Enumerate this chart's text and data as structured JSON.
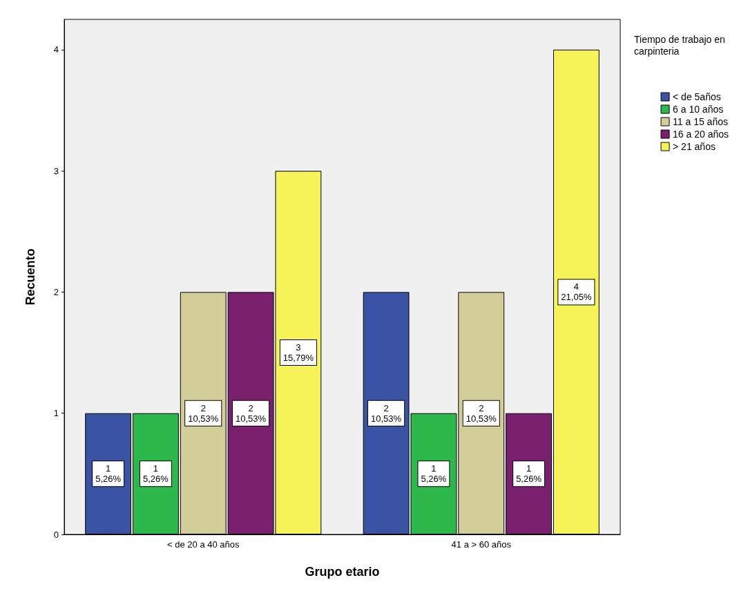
{
  "chart_data": {
    "type": "bar",
    "xlabel": "Grupo etario",
    "ylabel": "Recuento",
    "legend_title": "Tiempo de trabajo en carpinteria",
    "categories": [
      "< de 20 a 40 años",
      "41 a > 60 años"
    ],
    "series": [
      {
        "name": "< de 5años",
        "color": "#3a53a4",
        "values": [
          1,
          2
        ],
        "value_labels": [
          "1\n5,26%",
          "2\n10,53%"
        ]
      },
      {
        "name": "6 a 10 años",
        "color": "#2db84b",
        "values": [
          1,
          1
        ],
        "value_labels": [
          "1\n5,26%",
          "1\n5,26%"
        ]
      },
      {
        "name": "11 a 15 años",
        "color": "#d3ce97",
        "values": [
          2,
          2
        ],
        "value_labels": [
          "2\n10,53%",
          "2\n10,53%"
        ]
      },
      {
        "name": "16 a 20 años",
        "color": "#7a1f6d",
        "values": [
          2,
          1
        ],
        "value_labels": [
          "2\n10,53%",
          "1\n5,26%"
        ]
      },
      {
        "name": "> 21 años",
        "color": "#f5f358",
        "values": [
          3,
          4
        ],
        "value_labels": [
          "3\n15,79%",
          "4\n21,05%"
        ]
      }
    ],
    "ylim": [
      0,
      4.25
    ],
    "yticks": [
      0,
      1,
      2,
      3,
      4
    ],
    "grid": false,
    "legend": "top right"
  }
}
